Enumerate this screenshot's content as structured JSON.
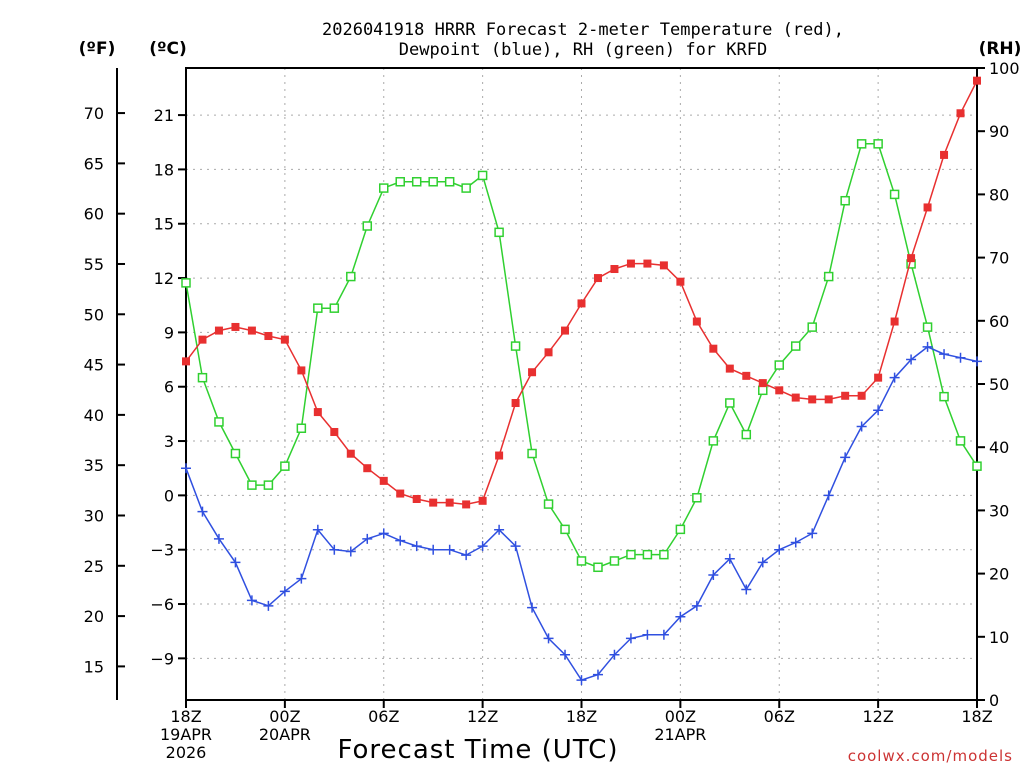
{
  "chart_data": {
    "type": "line",
    "title_line1": "2026041918 HRRR Forecast 2-meter Temperature (red),",
    "title_line2": "Dewpoint (blue), RH (green) for KRFD",
    "xlabel": "Forecast Time (UTC)",
    "credit": "coolwx.com/models",
    "units": {
      "fahrenheit": "(ºF)",
      "celsius": "(ºC)",
      "rh": "(RH)"
    },
    "hours": [
      0,
      1,
      2,
      3,
      4,
      5,
      6,
      7,
      8,
      9,
      10,
      11,
      12,
      13,
      14,
      15,
      16,
      17,
      18,
      19,
      20,
      21,
      22,
      23,
      24,
      25,
      26,
      27,
      28,
      29,
      30,
      31,
      32,
      33,
      34,
      35,
      36,
      37,
      38,
      39,
      40,
      41,
      42,
      43,
      44,
      45,
      46,
      47,
      48
    ],
    "x_range": [
      0,
      48
    ],
    "x_ticks": [
      {
        "hour": 0,
        "lines": [
          "18Z",
          "19APR",
          "2026"
        ]
      },
      {
        "hour": 6,
        "lines": [
          "00Z",
          "20APR"
        ]
      },
      {
        "hour": 12,
        "lines": [
          "06Z"
        ]
      },
      {
        "hour": 18,
        "lines": [
          "12Z"
        ]
      },
      {
        "hour": 24,
        "lines": [
          "18Z"
        ]
      },
      {
        "hour": 30,
        "lines": [
          "00Z",
          "21APR"
        ]
      },
      {
        "hour": 36,
        "lines": [
          "06Z"
        ]
      },
      {
        "hour": 42,
        "lines": [
          "12Z"
        ]
      },
      {
        "hour": 48,
        "lines": [
          "18Z"
        ]
      }
    ],
    "temp_c_axis": {
      "range": [
        -11.3,
        23.6
      ],
      "ticks": [
        -9,
        -6,
        -3,
        0,
        3,
        6,
        9,
        12,
        15,
        18,
        21
      ],
      "tick_labels": [
        "−9",
        "−6",
        "−3",
        "0",
        "3",
        "6",
        "9",
        "12",
        "15",
        "18",
        "21"
      ]
    },
    "temp_f_axis": {
      "ticks": [
        15,
        20,
        25,
        30,
        35,
        40,
        45,
        50,
        55,
        60,
        65,
        70
      ],
      "tick_labels": [
        "15",
        "20",
        "25",
        "30",
        "35",
        "40",
        "45",
        "50",
        "55",
        "60",
        "65",
        "70"
      ]
    },
    "rh_axis": {
      "range": [
        0,
        100
      ],
      "ticks": [
        0,
        10,
        20,
        30,
        40,
        50,
        60,
        70,
        80,
        90,
        100
      ],
      "tick_labels": [
        "0",
        "10",
        "20",
        "30",
        "40",
        "50",
        "60",
        "70",
        "80",
        "90",
        "100"
      ]
    },
    "series": [
      {
        "name": "Temperature",
        "units": "°C",
        "color": "#e83030",
        "marker": "filled-square",
        "values": [
          7.4,
          8.6,
          9.1,
          9.3,
          9.1,
          8.8,
          8.6,
          6.9,
          4.6,
          3.5,
          2.3,
          1.5,
          0.8,
          0.1,
          -0.2,
          -0.4,
          -0.4,
          -0.5,
          -0.3,
          2.2,
          5.1,
          6.8,
          7.9,
          9.1,
          10.6,
          12.0,
          12.5,
          12.8,
          12.8,
          12.7,
          11.8,
          9.6,
          8.1,
          7.0,
          6.6,
          6.2,
          5.8,
          5.4,
          5.3,
          5.3,
          5.5,
          5.5,
          6.5,
          9.6,
          13.1,
          15.9,
          18.8,
          21.1,
          22.9
        ]
      },
      {
        "name": "Dewpoint",
        "units": "°C",
        "color": "#3050e0",
        "marker": "plus",
        "values": [
          1.5,
          -0.9,
          -2.4,
          -3.7,
          -5.8,
          -6.1,
          -5.3,
          -4.6,
          -1.9,
          -3.0,
          -3.1,
          -2.4,
          -2.1,
          -2.5,
          -2.8,
          -3.0,
          -3.0,
          -3.3,
          -2.8,
          -1.9,
          -2.8,
          -6.2,
          -7.9,
          -8.8,
          -10.2,
          -9.9,
          -8.8,
          -7.9,
          -7.7,
          -7.7,
          -6.7,
          -6.1,
          -4.4,
          -3.5,
          -5.2,
          -3.7,
          -3.0,
          -2.6,
          -2.1,
          0.0,
          2.1,
          3.8,
          4.7,
          6.5,
          7.5,
          8.2,
          7.8,
          7.6,
          7.4
        ]
      },
      {
        "name": "RH",
        "units": "%",
        "color": "#30d030",
        "marker": "open-square",
        "values": [
          66,
          51,
          44,
          39,
          34,
          34,
          37,
          43,
          62,
          62,
          67,
          75,
          81,
          82,
          82,
          82,
          82,
          81,
          83,
          74,
          56,
          39,
          31,
          27,
          22,
          21,
          22,
          23,
          23,
          23,
          27,
          32,
          41,
          47,
          42,
          49,
          53,
          56,
          59,
          67,
          79,
          88,
          88,
          80,
          69,
          59,
          48,
          41,
          37
        ]
      }
    ]
  }
}
